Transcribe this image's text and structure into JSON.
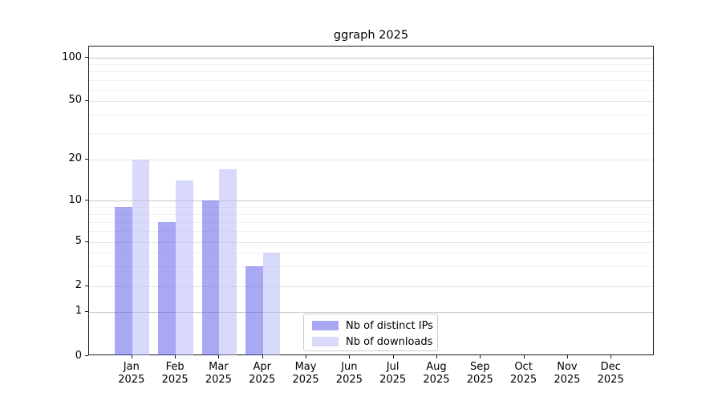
{
  "chart_data": {
    "type": "bar",
    "title": "ggraph 2025",
    "categories": [
      "Jan",
      "Feb",
      "Mar",
      "Apr",
      "May",
      "Jun",
      "Jul",
      "Aug",
      "Sep",
      "Oct",
      "Nov",
      "Dec"
    ],
    "year_label": "2025",
    "series": [
      {
        "name": "Nb of distinct IPs",
        "swatch_color": "#a8a8f2",
        "fill": "rgba(81,81,231,0.5)",
        "values": [
          9,
          7,
          10,
          3,
          0,
          0,
          0,
          0,
          0,
          0,
          0,
          0
        ]
      },
      {
        "name": "Nb of downloads",
        "swatch_color": "#dadafb",
        "fill": "rgba(180,180,248,0.5)",
        "values": [
          20,
          14,
          17,
          4,
          0,
          0,
          0,
          0,
          0,
          0,
          0,
          0
        ]
      }
    ],
    "y_axis": {
      "scale": "log-like",
      "ticks": [
        0,
        1,
        2,
        5,
        10,
        20,
        50,
        100
      ],
      "minor_gridlines": [
        3,
        4,
        6,
        7,
        8,
        9,
        30,
        40,
        60,
        70,
        80,
        90
      ],
      "ylim": [
        0,
        100
      ]
    },
    "grid": true,
    "legend_position": "bottom-center",
    "colors": {
      "decade_gridline": "#c8c8c8",
      "major_gridline": "#e4e4e4",
      "minor_gridline": "#f1f1f1",
      "axis": "#1a1a1a"
    }
  }
}
